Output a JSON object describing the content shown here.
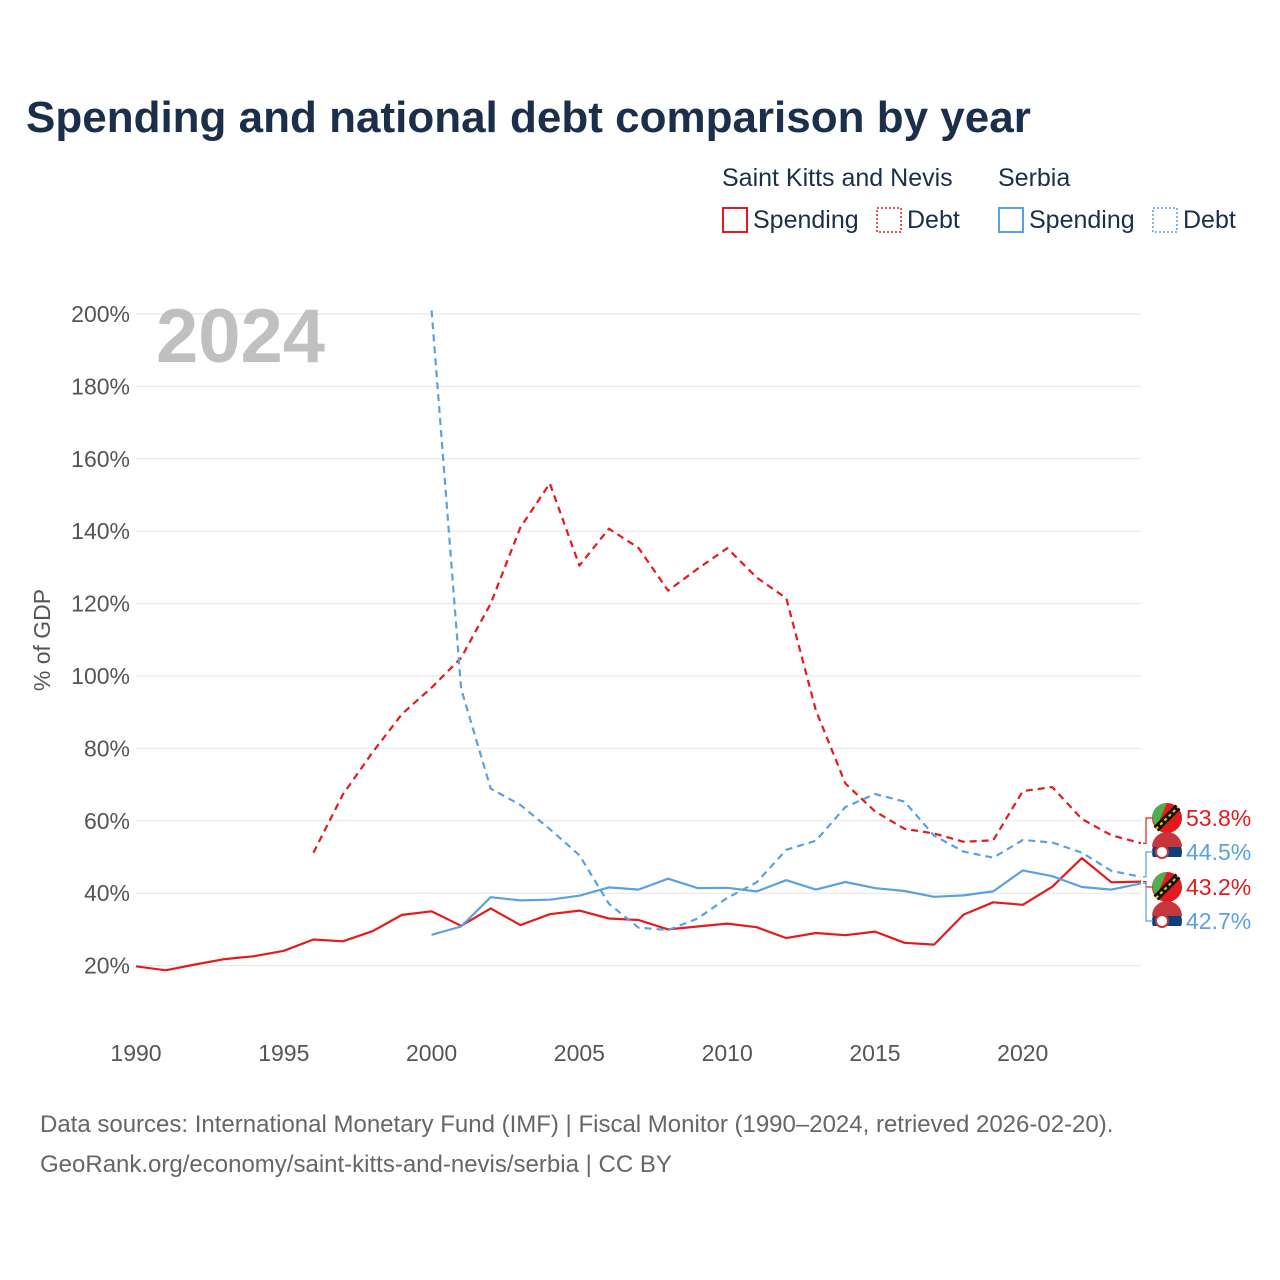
{
  "chart_data": {
    "type": "line",
    "title": "Spending and national debt comparison by year",
    "year_stamp": "2024",
    "ylabel": "% of GDP",
    "xlim": [
      1990,
      2024
    ],
    "ylim": [
      0,
      200
    ],
    "x_ticks": [
      1990,
      1995,
      2000,
      2005,
      2010,
      2015,
      2020
    ],
    "x_tick_labels": [
      "1990",
      "1995",
      "2000",
      "2005",
      "2010",
      "2015",
      "2020"
    ],
    "y_ticks": [
      20,
      40,
      60,
      80,
      100,
      120,
      140,
      160,
      180,
      200
    ],
    "y_tick_labels": [
      "20%",
      "40%",
      "60%",
      "80%",
      "100%",
      "120%",
      "140%",
      "160%",
      "180%",
      "200%"
    ],
    "legend": {
      "groups": [
        {
          "country": "Saint Kitts and Nevis",
          "items": [
            {
              "label": "Spending",
              "style": "solid"
            },
            {
              "label": "Debt",
              "style": "dotted"
            }
          ],
          "color": "#e41a1c"
        },
        {
          "country": "Serbia",
          "items": [
            {
              "label": "Spending",
              "style": "solid"
            },
            {
              "label": "Debt",
              "style": "dotted"
            }
          ],
          "color": "#5aa1e2"
        }
      ]
    },
    "series": [
      {
        "name": "Saint Kitts and Nevis Spending",
        "country": "Saint Kitts and Nevis",
        "metric": "Spending",
        "color": "#e41a1c",
        "dash": false,
        "x": [
          1990,
          1991,
          1992,
          1993,
          1994,
          1995,
          1996,
          1997,
          1998,
          1999,
          2000,
          2001,
          2002,
          2003,
          2004,
          2005,
          2006,
          2007,
          2008,
          2009,
          2010,
          2011,
          2012,
          2013,
          2014,
          2015,
          2016,
          2017,
          2018,
          2019,
          2020,
          2021,
          2022,
          2023,
          2024
        ],
        "values": [
          19.8,
          18.7,
          20.3,
          21.8,
          22.6,
          24.1,
          27.2,
          26.7,
          29.5,
          34.0,
          35.0,
          31.0,
          35.8,
          31.2,
          34.2,
          35.2,
          33.0,
          32.6,
          30.0,
          30.8,
          31.6,
          30.6,
          27.6,
          29.0,
          28.4,
          29.4,
          26.3,
          25.8,
          34.1,
          37.5,
          36.8,
          41.8,
          49.7,
          43.0,
          43.2
        ]
      },
      {
        "name": "Saint Kitts and Nevis Debt",
        "country": "Saint Kitts and Nevis",
        "metric": "Debt",
        "color": "#e41a1c",
        "dash": true,
        "x": [
          1996,
          1997,
          1998,
          1999,
          2000,
          2001,
          2002,
          2003,
          2004,
          2005,
          2006,
          2007,
          2008,
          2009,
          2010,
          2011,
          2012,
          2013,
          2014,
          2015,
          2016,
          2017,
          2018,
          2019,
          2020,
          2021,
          2022,
          2023,
          2024
        ],
        "values": [
          51.2,
          67.3,
          78.9,
          89.5,
          96.8,
          105.0,
          120.0,
          141.0,
          153.2,
          130.5,
          140.7,
          135.4,
          123.6,
          129.6,
          135.3,
          127.2,
          121.5,
          90.5,
          70.3,
          62.6,
          57.8,
          56.5,
          54.2,
          54.6,
          68.2,
          69.3,
          60.5,
          56.0,
          53.8
        ]
      },
      {
        "name": "Serbia Spending",
        "country": "Serbia",
        "metric": "Spending",
        "color": "#5aa1e2",
        "dash": false,
        "x": [
          2000,
          2001,
          2002,
          2003,
          2004,
          2005,
          2006,
          2007,
          2008,
          2009,
          2010,
          2011,
          2012,
          2013,
          2014,
          2015,
          2016,
          2017,
          2018,
          2019,
          2020,
          2021,
          2022,
          2023,
          2024
        ],
        "values": [
          28.5,
          30.8,
          38.9,
          38.0,
          38.2,
          39.3,
          41.6,
          41.0,
          44.0,
          41.4,
          41.5,
          40.5,
          43.6,
          41.0,
          43.1,
          41.4,
          40.6,
          39.0,
          39.4,
          40.5,
          46.3,
          44.7,
          41.7,
          41.0,
          42.7
        ]
      },
      {
        "name": "Serbia Debt",
        "country": "Serbia",
        "metric": "Debt",
        "color": "#5aa1e2",
        "dash": true,
        "x": [
          2000,
          2001,
          2002,
          2003,
          2004,
          2005,
          2006,
          2007,
          2008,
          2009,
          2010,
          2011,
          2012,
          2013,
          2014,
          2015,
          2016,
          2017,
          2018,
          2019,
          2020,
          2021,
          2022,
          2023,
          2024
        ],
        "values": [
          201.0,
          96.5,
          68.9,
          64.4,
          57.7,
          50.5,
          37.1,
          30.5,
          29.8,
          33.0,
          38.7,
          43.0,
          52.0,
          54.5,
          63.8,
          67.4,
          65.3,
          55.9,
          51.5,
          49.8,
          54.7,
          54.0,
          51.2,
          46.2,
          44.5
        ]
      }
    ],
    "end_labels": [
      {
        "text": "53.8%",
        "value": 53.8,
        "country": "Saint Kitts and Nevis",
        "color": "#e41a1c"
      },
      {
        "text": "44.5%",
        "value": 44.5,
        "country": "Serbia",
        "color": "#5aa1e2"
      },
      {
        "text": "43.2%",
        "value": 43.2,
        "country": "Saint Kitts and Nevis",
        "color": "#e41a1c"
      },
      {
        "text": "42.7%",
        "value": 42.7,
        "country": "Serbia",
        "color": "#5aa1e2"
      }
    ],
    "source_lines": [
      "Data sources: International Monetary Fund (IMF) | Fiscal Monitor (1990–2024, retrieved 2026-02-20).",
      "GeoRank.org/economy/saint-kitts-and-nevis/serbia | CC BY"
    ]
  }
}
